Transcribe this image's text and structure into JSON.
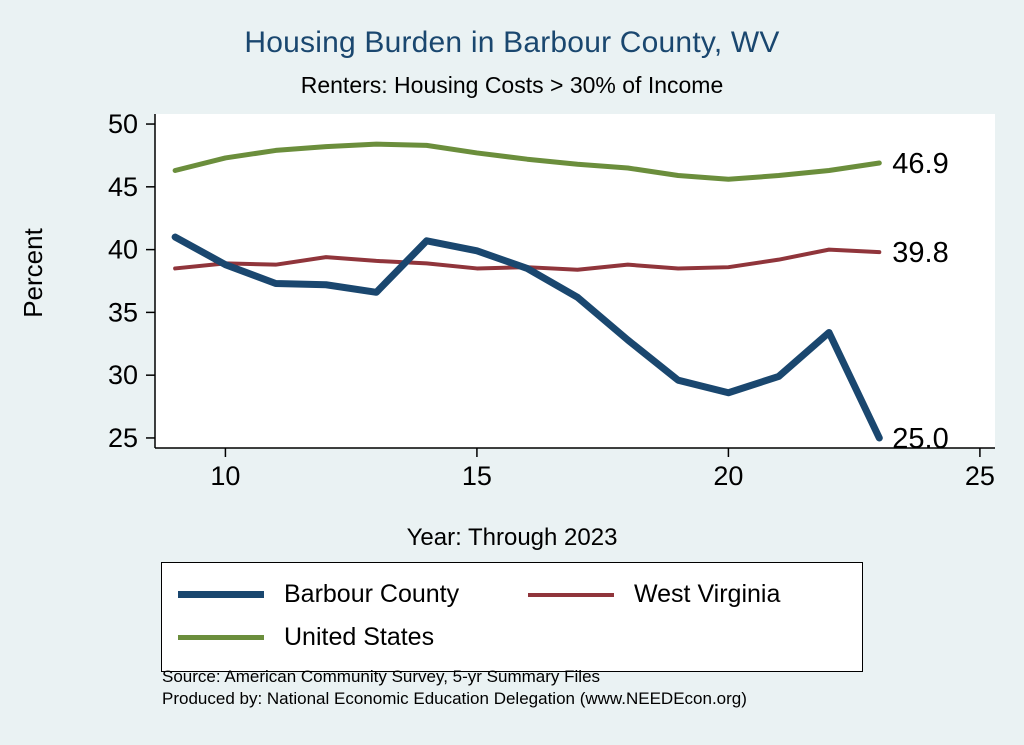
{
  "chart_data": {
    "type": "line",
    "title": "Housing Burden in Barbour County, WV",
    "subtitle": "Renters: Housing Costs > 30% of Income",
    "xlabel": "Year: Through 2023",
    "ylabel": "Percent",
    "background_color": "#eaf2f3",
    "title_color": "#1a476f",
    "plot_background": "#ffffff",
    "grid": false,
    "legend_position": "bottom",
    "x": [
      9,
      10,
      11,
      12,
      13,
      14,
      15,
      16,
      17,
      18,
      19,
      20,
      21,
      22,
      23
    ],
    "x_ticks": [
      10,
      15,
      20,
      25
    ],
    "y_ticks": [
      25,
      30,
      35,
      40,
      45,
      50
    ],
    "xlim": [
      8.6,
      25.3
    ],
    "ylim": [
      24.2,
      50.8
    ],
    "series": [
      {
        "name": "Barbour County",
        "color": "#1a476f",
        "line_width": 7,
        "end_label": "25.0",
        "values": [
          41.0,
          38.8,
          37.3,
          37.2,
          36.6,
          40.7,
          39.9,
          38.5,
          36.2,
          32.8,
          29.6,
          28.6,
          29.9,
          33.4,
          25.0
        ]
      },
      {
        "name": "West Virginia",
        "color": "#90353b",
        "line_width": 4,
        "end_label": "39.8",
        "values": [
          38.5,
          38.9,
          38.8,
          39.4,
          39.1,
          38.9,
          38.5,
          38.6,
          38.4,
          38.8,
          38.5,
          38.6,
          39.2,
          40.0,
          39.8
        ]
      },
      {
        "name": "United States",
        "color": "#6b8e3c",
        "line_width": 5,
        "end_label": "46.9",
        "values": [
          46.3,
          47.3,
          47.9,
          48.2,
          48.4,
          48.3,
          47.7,
          47.2,
          46.8,
          46.5,
          45.9,
          45.6,
          45.9,
          46.3,
          46.9
        ]
      }
    ]
  },
  "notes": {
    "line1": "Source: American Community Survey, 5-yr Summary Files",
    "line2": "Produced by: National Economic Education Delegation (www.NEEDEcon.org)"
  }
}
